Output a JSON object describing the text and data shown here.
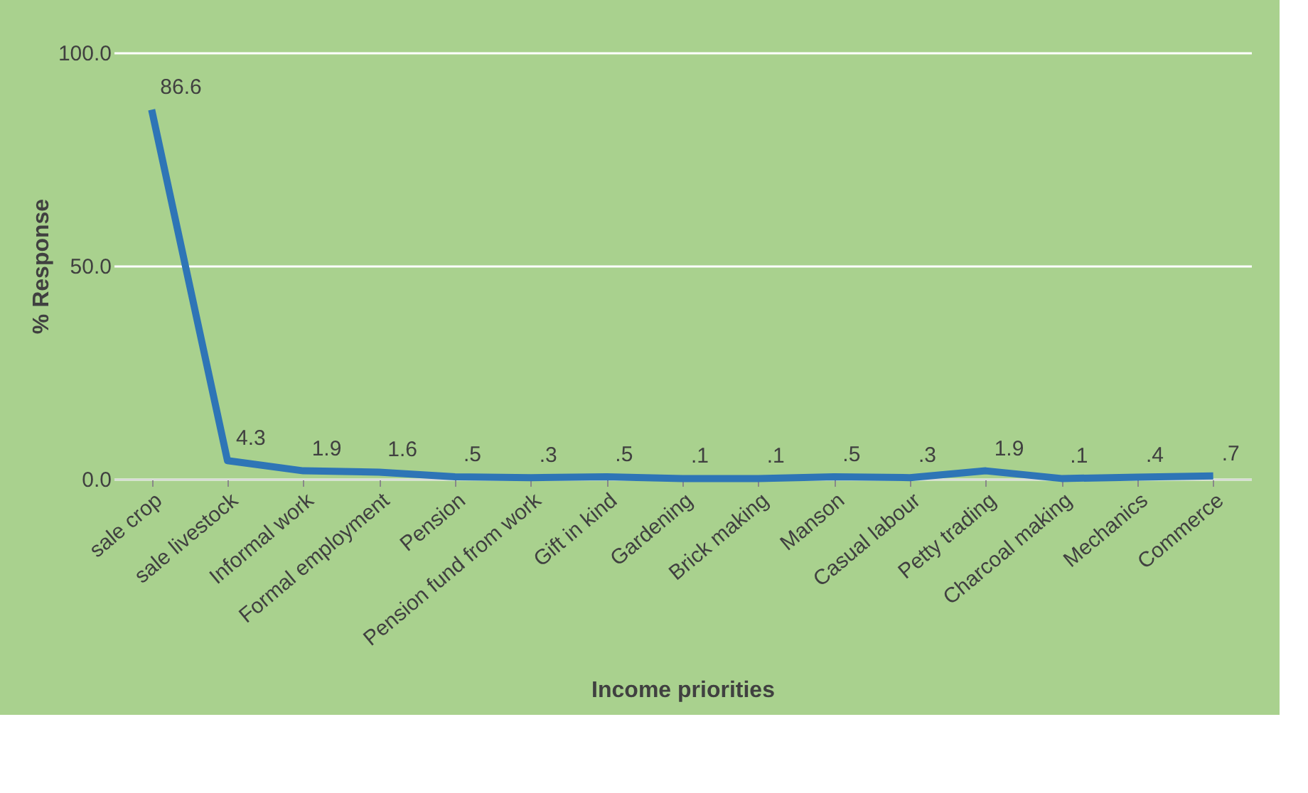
{
  "chart_data": {
    "type": "line",
    "xlabel": "Income priorities",
    "ylabel": "% Response",
    "categories": [
      "sale crop",
      "sale livestock",
      "Informal work",
      "Formal employment",
      "Pension",
      "Pension fund from work",
      "Gift in kind",
      "Gardening",
      "Brick making",
      "Manson",
      "Casual labour",
      "Petty trading",
      "Charcoal making",
      "Mechanics",
      "Commerce"
    ],
    "series": [
      {
        "color": "#2e75b6",
        "values": [
          86.6,
          4.3,
          1.9,
          1.6,
          0.5,
          0.3,
          0.5,
          0.1,
          0.1,
          0.5,
          0.3,
          1.9,
          0.1,
          0.4,
          0.7
        ],
        "value_labels": [
          "86.6",
          "4.3",
          "1.9",
          "1.6",
          ".5",
          ".3",
          ".5",
          ".1",
          ".1",
          ".5",
          ".3",
          "1.9",
          ".1",
          ".4",
          ".7"
        ]
      }
    ],
    "ylim": [
      0,
      100
    ],
    "yticks": [
      {
        "value": 0,
        "label": "0.0"
      },
      {
        "value": 50,
        "label": "50.0"
      },
      {
        "value": 100,
        "label": "100.0"
      }
    ],
    "grid": "y",
    "marker": "none",
    "line_style": "solid"
  }
}
